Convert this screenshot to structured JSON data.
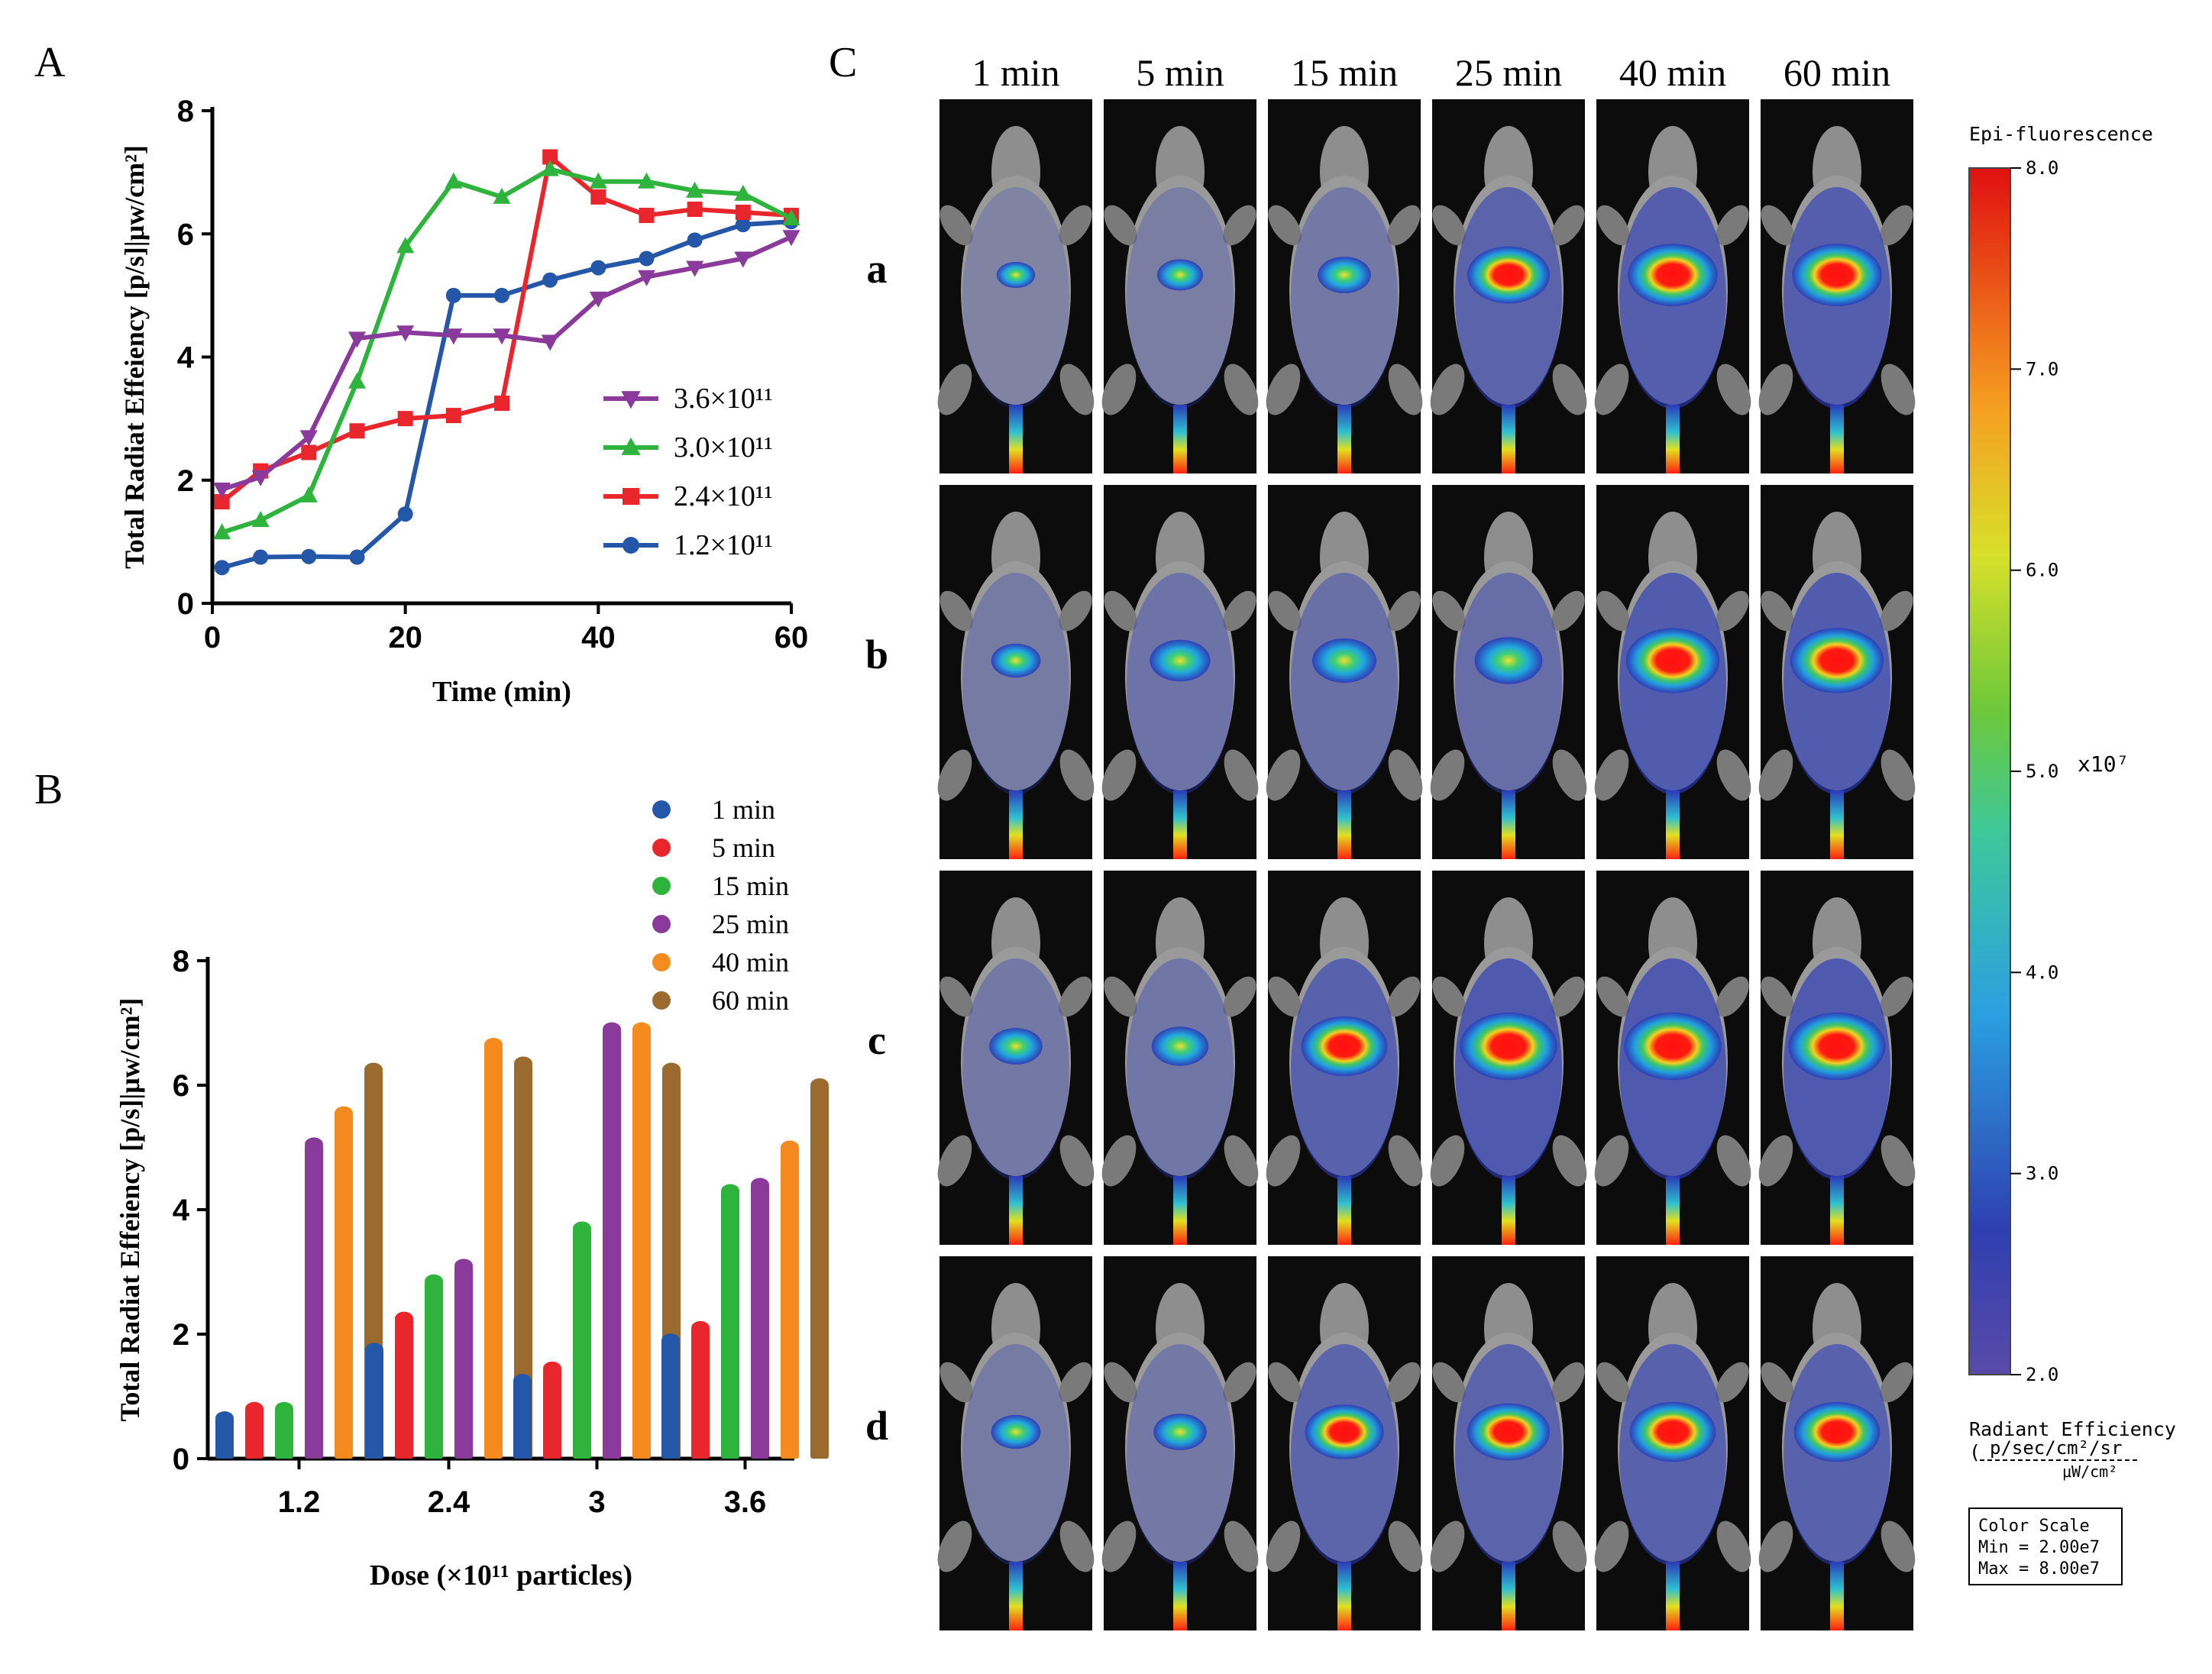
{
  "panels": {
    "A": "A",
    "B": "B",
    "C": "C"
  },
  "chart_data": [
    {
      "type": "line",
      "panel": "A",
      "xlabel": "Time (min)",
      "ylabel": "Total Radiat Effeiency [p/s]|μw/cm²]",
      "xlim": [
        0,
        60
      ],
      "ylim": [
        0,
        8
      ],
      "xticks": [
        0,
        20,
        40,
        60
      ],
      "yticks": [
        0,
        2,
        4,
        6,
        8
      ],
      "legend_position": "lower-right",
      "series": [
        {
          "name": "3.6×10¹¹",
          "color": "#8a3a9a",
          "marker": "triangle-down",
          "x": [
            1,
            5,
            10,
            15,
            20,
            25,
            30,
            35,
            40,
            45,
            50,
            55,
            60
          ],
          "values": [
            1.85,
            2.05,
            2.7,
            4.3,
            4.4,
            4.35,
            4.35,
            4.25,
            4.95,
            5.3,
            5.45,
            5.6,
            5.95
          ]
        },
        {
          "name": "3.0×10¹¹",
          "color": "#2eb43c",
          "marker": "triangle-up",
          "x": [
            1,
            5,
            10,
            15,
            20,
            25,
            30,
            35,
            40,
            45,
            50,
            55,
            60
          ],
          "values": [
            1.15,
            1.35,
            1.75,
            3.6,
            5.8,
            6.85,
            6.6,
            7.05,
            6.85,
            6.85,
            6.7,
            6.65,
            6.25
          ]
        },
        {
          "name": "2.4×10¹¹",
          "color": "#e8262c",
          "marker": "square",
          "x": [
            1,
            5,
            10,
            15,
            20,
            25,
            30,
            35,
            40,
            45,
            50,
            55,
            60
          ],
          "values": [
            1.65,
            2.15,
            2.45,
            2.8,
            3.0,
            3.05,
            3.25,
            7.25,
            6.6,
            6.3,
            6.4,
            6.35,
            6.3
          ]
        },
        {
          "name": "1.2×10¹¹",
          "color": "#2457a8",
          "marker": "circle",
          "x": [
            1,
            5,
            10,
            15,
            20,
            25,
            30,
            35,
            40,
            45,
            50,
            55,
            60
          ],
          "values": [
            0.58,
            0.75,
            0.76,
            0.75,
            1.45,
            5.0,
            5.0,
            5.25,
            5.45,
            5.6,
            5.9,
            6.15,
            6.2
          ]
        }
      ]
    },
    {
      "type": "bar",
      "panel": "B",
      "xlabel": "Dose (×10¹¹ particles)",
      "ylabel": "Total Radiat Effeiency [p/s]|μw/cm²]",
      "ylim": [
        0,
        8
      ],
      "yticks": [
        0,
        2,
        4,
        6,
        8
      ],
      "categories": [
        "1.2",
        "2.4",
        "3",
        "3.6"
      ],
      "legend_position": "top-right",
      "series": [
        {
          "name": "1 min",
          "color": "#2457a8",
          "values": [
            0.65,
            1.75,
            1.25,
            1.9
          ]
        },
        {
          "name": "5 min",
          "color": "#e8262c",
          "values": [
            0.8,
            2.25,
            1.45,
            2.1
          ]
        },
        {
          "name": "15 min",
          "color": "#2eb43c",
          "values": [
            0.8,
            2.85,
            3.7,
            4.3
          ]
        },
        {
          "name": "25 min",
          "color": "#8a3a9a",
          "values": [
            5.05,
            3.1,
            6.9,
            4.4
          ]
        },
        {
          "name": "40 min",
          "color": "#f58a1f",
          "values": [
            5.55,
            6.65,
            6.9,
            5.0
          ]
        },
        {
          "name": "60 min",
          "color": "#9a6a2e",
          "values": [
            6.25,
            6.35,
            6.25,
            6.0
          ]
        }
      ]
    }
  ],
  "imaging": {
    "time_headers": [
      "1 min",
      "5 min",
      "15 min",
      "25 min",
      "40 min",
      "60 min"
    ],
    "rows": [
      {
        "label": "a",
        "intensity": [
          0.15,
          0.25,
          0.35,
          0.75,
          0.85,
          0.85
        ]
      },
      {
        "label": "b",
        "intensity": [
          0.3,
          0.45,
          0.5,
          0.55,
          0.9,
          0.9
        ]
      },
      {
        "label": "c",
        "intensity": [
          0.35,
          0.4,
          0.8,
          0.95,
          0.95,
          0.95
        ]
      },
      {
        "label": "d",
        "intensity": [
          0.3,
          0.35,
          0.7,
          0.75,
          0.8,
          0.8
        ]
      }
    ]
  },
  "colorbar": {
    "title": "Epi-fluorescence",
    "ticks": [
      "8.0",
      "7.0",
      "6.0",
      "5.0",
      "4.0",
      "3.0",
      "2.0"
    ],
    "exponent_label": "x10⁷",
    "units_title": "Radiant Efficiency",
    "units_numerator": "p/sec/cm²/sr",
    "units_denominator": "μW/cm²",
    "scale_box": [
      "Color Scale",
      "Min = 2.00e7",
      "Max = 8.00e7"
    ]
  }
}
